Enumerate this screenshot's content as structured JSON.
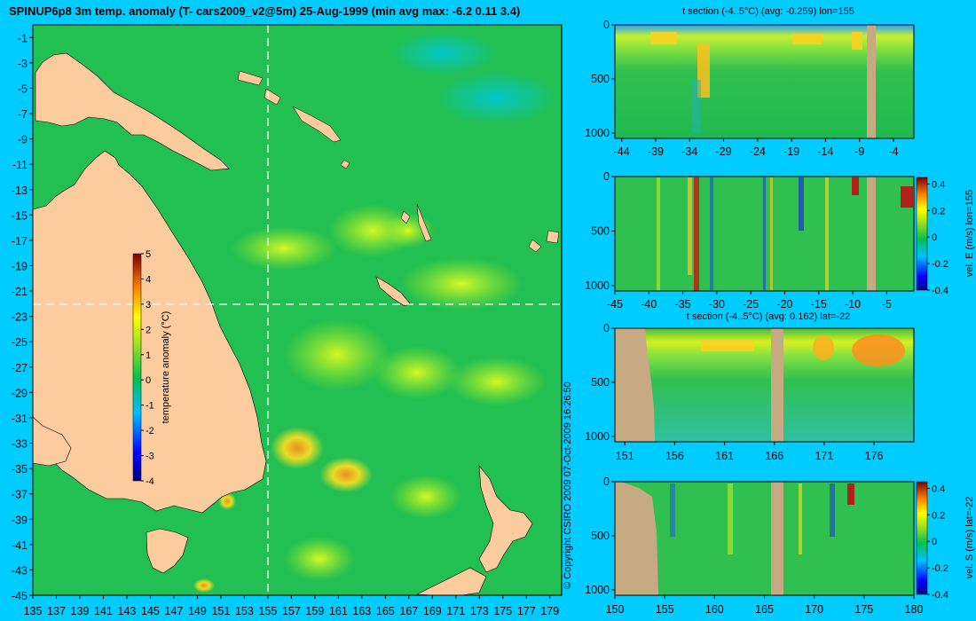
{
  "title": "SPINUP6p8 3m temp. anomaly (T- cars2009_v2@5m) 25-Aug-1999 (min avg max: -6.2 0.11 3.4)",
  "copyright": "© Copyright CSIRO 2009   07-Oct-2009 16:26:50",
  "colors": {
    "background": "#00ccff",
    "land": "#fdcc9e",
    "section_land": "#c8aa82",
    "ocean": "#22c052"
  },
  "chart_data": [
    {
      "type": "heatmap",
      "name": "map",
      "title": "SPINUP6p8 3m temp. anomaly (T- cars2009_v2@5m) 25-Aug-1999 (min avg max: -6.2 0.11 3.4)",
      "x_ticks": [
        135,
        137,
        139,
        141,
        143,
        145,
        147,
        149,
        151,
        153,
        155,
        157,
        159,
        161,
        163,
        165,
        167,
        169,
        171,
        173,
        175,
        177,
        179
      ],
      "y_ticks": [
        -1,
        -3,
        -5,
        -7,
        -9,
        -11,
        -13,
        -15,
        -17,
        -19,
        -21,
        -23,
        -25,
        -27,
        -29,
        -31,
        -33,
        -35,
        -37,
        -39,
        -41,
        -43,
        -45
      ],
      "xlim": [
        135,
        180
      ],
      "ylim": [
        -45,
        0
      ],
      "section_lines": {
        "lon": 155,
        "lat": -22
      },
      "colorbar": {
        "label": "temperature anomaly (°C)",
        "ticks": [
          5,
          4,
          3,
          2,
          1,
          0,
          -1,
          -2,
          -3,
          -4
        ],
        "range": [
          -4,
          5
        ]
      }
    },
    {
      "type": "heatmap",
      "name": "t-section-lon",
      "title": "t section (-4..5°C) (avg: -0.259) lon=155",
      "x_ticks": [
        -44,
        -39,
        -34,
        -29,
        -24,
        -19,
        -14,
        -9,
        -4
      ],
      "y_ticks": [
        0,
        500,
        1000
      ],
      "xlim": [
        -45,
        -1
      ],
      "ylim": [
        1050,
        0
      ]
    },
    {
      "type": "heatmap",
      "name": "velocity-east-section",
      "title": "",
      "x_ticks": [
        -45,
        -40,
        -35,
        -30,
        -25,
        -20,
        -15,
        -10,
        -5
      ],
      "y_ticks": [
        0,
        500,
        1000
      ],
      "xlim": [
        -45,
        -1
      ],
      "ylim": [
        1050,
        0
      ],
      "colorbar": {
        "label": "vel. E (m/s) lon=155",
        "ticks": [
          0.4,
          0.2,
          0,
          -0.2,
          -0.4
        ],
        "range": [
          -0.4,
          0.45
        ]
      }
    },
    {
      "type": "heatmap",
      "name": "t-section-lat",
      "title": "t section (-4..5°C) (avg: 0.162) lat=-22",
      "x_ticks": [
        151,
        156,
        161,
        166,
        171,
        176
      ],
      "y_ticks": [
        0,
        500,
        1000
      ],
      "xlim": [
        150,
        180
      ],
      "ylim": [
        1050,
        0
      ]
    },
    {
      "type": "heatmap",
      "name": "velocity-south-section",
      "title": "",
      "x_ticks": [
        150,
        155,
        160,
        165,
        170,
        175,
        180
      ],
      "y_ticks": [
        0,
        500,
        1000
      ],
      "xlim": [
        150,
        180
      ],
      "ylim": [
        1050,
        0
      ],
      "colorbar": {
        "label": "vel. S (m/s) lat=-22",
        "ticks": [
          0.4,
          0.2,
          0,
          -0.2,
          -0.4
        ],
        "range": [
          -0.4,
          0.45
        ]
      }
    }
  ]
}
